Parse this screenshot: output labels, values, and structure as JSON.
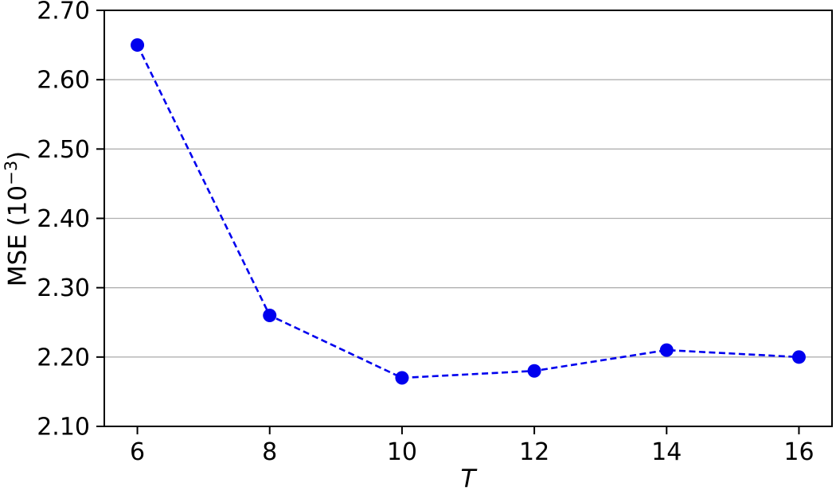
{
  "chart_data": {
    "type": "line",
    "title": "",
    "xlabel": "T",
    "ylabel": "MSE (10⁻³)",
    "ylabel_parts": {
      "base": "MSE (10",
      "exp": "−3",
      "close": ")"
    },
    "x": [
      6,
      8,
      10,
      12,
      14,
      16
    ],
    "series": [
      {
        "name": "MSE",
        "values": [
          2.65,
          2.26,
          2.17,
          2.18,
          2.21,
          2.2
        ],
        "color": "#0000ee",
        "line_style": "dashed",
        "marker": "circle",
        "marker_radius": 8.5,
        "line_width": 2.6
      }
    ],
    "xlim": [
      5.5,
      16.5
    ],
    "ylim": [
      2.1,
      2.7
    ],
    "xticks": [
      6,
      8,
      10,
      12,
      14,
      16
    ],
    "xtick_labels": [
      "6",
      "8",
      "10",
      "12",
      "14",
      "16"
    ],
    "yticks": [
      2.1,
      2.2,
      2.3,
      2.4,
      2.5,
      2.6,
      2.7
    ],
    "ytick_labels": [
      "2.10",
      "2.20",
      "2.30",
      "2.40",
      "2.50",
      "2.60",
      "2.70"
    ],
    "grid": "horizontal",
    "grid_color": "#b0b0b0",
    "axis_color": "#000000",
    "tick_label_color": "#000000",
    "background": "#ffffff",
    "legend_position": "none"
  }
}
